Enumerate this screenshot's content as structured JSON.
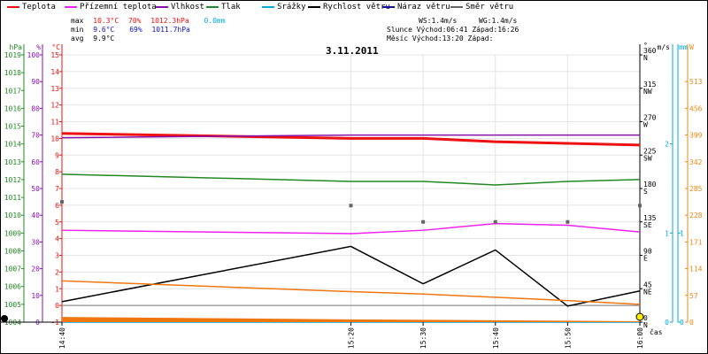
{
  "legend": [
    {
      "label": "Teplota",
      "color": "#ee1111"
    },
    {
      "label": "Přízemní teplota",
      "color": "#ee22ee"
    },
    {
      "label": "Vlhkost",
      "color": "#8811aa"
    },
    {
      "label": "Tlak",
      "color": "#228822"
    },
    {
      "label": "Srážky",
      "color": "#00aadd"
    },
    {
      "label": "Rychlost větru",
      "color": "#000000"
    },
    {
      "label": "Náraz větru",
      "color": "#111199"
    },
    {
      "label": "Směr větru",
      "color": "#666666"
    }
  ],
  "stats": {
    "max_label": "max",
    "max_temp": "10.3°C",
    "max_hum": "70%",
    "max_press": "1012.3hPa",
    "max_rain": "0.0mm",
    "min_label": "min",
    "min_temp": "9.6°C",
    "min_hum": "69%",
    "min_press": "1011.7hPa",
    "avg_label": "avg",
    "avg_temp": "9.9°C",
    "ws": "WS:1.4m/s",
    "wg": "WG:1.4m/s",
    "sun": "Slunce Východ:06:41 Západ:16:26",
    "moon": "Měsíc Východ:13:20 Západ:"
  },
  "units": {
    "hpa": "hPa",
    "percent": "%",
    "celsius": "°C",
    "degree": "°",
    "ms": "m/s",
    "mm": "mm",
    "wm": "W",
    "time": "čas"
  },
  "chart_data": {
    "type": "line",
    "title": "3.11.2011",
    "x": [
      "14:40",
      "15:20",
      "15:30",
      "15:40",
      "15:50",
      "16:00"
    ],
    "x_minutes": [
      0,
      40,
      50,
      60,
      70,
      80
    ],
    "axes": {
      "temperature_c": {
        "min": -1,
        "max": 15,
        "ticks": [
          -1,
          0,
          1,
          2,
          3,
          4,
          5,
          6,
          7,
          8,
          9,
          10,
          11,
          12,
          13,
          14,
          15
        ]
      },
      "humidity_pct": {
        "min": 0,
        "max": 100,
        "ticks": [
          0,
          10,
          20,
          30,
          40,
          50,
          60,
          70,
          80,
          90,
          100
        ]
      },
      "pressure_hpa": {
        "min": 1004,
        "max": 1019,
        "ticks": [
          1004,
          1005,
          1006,
          1007,
          1008,
          1009,
          1010,
          1011,
          1012,
          1013,
          1014,
          1015,
          1016,
          1017,
          1018,
          1019
        ]
      },
      "direction_deg": {
        "min": 0,
        "max": 360,
        "ticks": [
          {
            "v": 0,
            "lab": "0",
            "dir": "N"
          },
          {
            "v": 45,
            "lab": "45",
            "dir": "NE"
          },
          {
            "v": 90,
            "lab": "90",
            "dir": "E"
          },
          {
            "v": 135,
            "lab": "135",
            "dir": "SE"
          },
          {
            "v": 180,
            "lab": "180",
            "dir": "S"
          },
          {
            "v": 225,
            "lab": "225",
            "dir": "SW"
          },
          {
            "v": 270,
            "lab": "270",
            "dir": "W"
          },
          {
            "v": 315,
            "lab": "315",
            "dir": "NW"
          },
          {
            "v": 360,
            "lab": "360",
            "dir": "N"
          }
        ]
      },
      "wind_ms": {
        "min": 0,
        "max": 3,
        "ticks": [
          0,
          1,
          2
        ]
      },
      "rain_mm": {
        "min": 0,
        "max": 3,
        "ticks": [
          0,
          1
        ]
      },
      "solar_wm": {
        "min": 0,
        "max": 570,
        "ticks": [
          0,
          57,
          114,
          171,
          228,
          285,
          342,
          399,
          456,
          513
        ]
      }
    },
    "series": [
      {
        "name": "Teplota",
        "axis": "temperature_c",
        "color": "#ee1111",
        "points": [
          [
            0,
            10.3
          ],
          [
            40,
            10.0
          ],
          [
            50,
            10.0
          ],
          [
            60,
            9.8
          ],
          [
            70,
            9.7
          ],
          [
            80,
            9.6
          ]
        ]
      },
      {
        "name": "Přízemní teplota",
        "axis": "temperature_c",
        "color": "#ee22ee",
        "points": [
          [
            0,
            4.5
          ],
          [
            40,
            4.3
          ],
          [
            50,
            4.5
          ],
          [
            60,
            4.9
          ],
          [
            70,
            4.8
          ],
          [
            80,
            4.4
          ]
        ]
      },
      {
        "name": "Vlhkost",
        "axis": "humidity_pct",
        "color": "#8811aa",
        "points": [
          [
            0,
            69
          ],
          [
            40,
            70
          ],
          [
            50,
            70
          ],
          [
            60,
            70
          ],
          [
            70,
            70
          ],
          [
            80,
            70
          ]
        ]
      },
      {
        "name": "Tlak",
        "axis": "pressure_hpa",
        "color": "#228822",
        "points": [
          [
            0,
            1012.3
          ],
          [
            40,
            1011.9
          ],
          [
            50,
            1011.9
          ],
          [
            60,
            1011.7
          ],
          [
            70,
            1011.9
          ],
          [
            80,
            1012.0
          ]
        ]
      },
      {
        "name": "Srážky",
        "axis": "rain_mm",
        "color": "#00aadd",
        "points": [
          [
            0,
            0.0
          ],
          [
            80,
            0.0
          ]
        ]
      },
      {
        "name": "Rychlost větru",
        "axis": "wind_ms",
        "color": "#000000",
        "points": [
          [
            0,
            0.23
          ],
          [
            40,
            0.85
          ],
          [
            50,
            0.43
          ],
          [
            60,
            0.81
          ],
          [
            70,
            0.18
          ],
          [
            80,
            0.35
          ]
        ]
      },
      {
        "name": "Směr větru",
        "axis": "direction_deg",
        "color": "#666666",
        "markers": true,
        "points": [
          [
            0,
            162
          ],
          [
            40,
            157
          ],
          [
            50,
            135
          ],
          [
            60,
            135
          ],
          [
            70,
            135
          ],
          [
            80,
            157
          ]
        ]
      },
      {
        "name": "Solar",
        "axis": "solar_wm",
        "color": "#ee7711",
        "points": [
          [
            0,
            88
          ],
          [
            40,
            65
          ],
          [
            50,
            60
          ],
          [
            60,
            53
          ],
          [
            70,
            46
          ],
          [
            80,
            38
          ]
        ]
      },
      {
        "name": "Solar area",
        "axis": "solar_wm",
        "color": "#ee7711",
        "area": true,
        "points": [
          [
            0,
            11
          ],
          [
            40,
            6
          ],
          [
            50,
            5
          ],
          [
            60,
            4
          ],
          [
            70,
            3
          ],
          [
            80,
            2
          ]
        ]
      }
    ]
  }
}
